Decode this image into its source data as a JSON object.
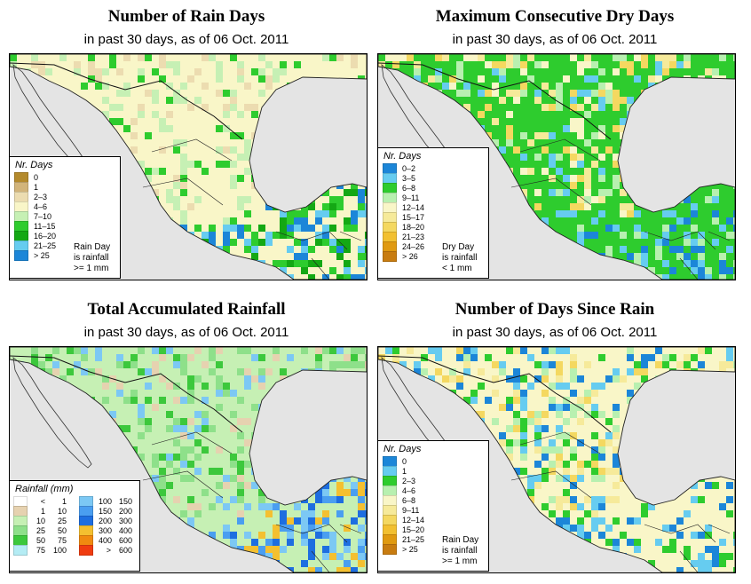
{
  "colors": {
    "land_light": "#f9f3c3",
    "land_pale": "#eef8cc",
    "green_light": "#b4eea8",
    "green": "#3cd43c",
    "green_dark": "#18b818",
    "blue_light": "#8fdcf4",
    "blue": "#44aaee",
    "blue_dark": "#1c76dc",
    "tan": "#deb887",
    "brown": "#c9881e",
    "orange": "#f5a623",
    "ocean": "#e4e4e4"
  },
  "panels": [
    {
      "title": "Number of Rain Days",
      "subtitle": "in past 30 days, as of  06 Oct. 2011",
      "legend": {
        "title": "Nr. Days",
        "items": [
          {
            "label": "0",
            "color": "#b48a2c"
          },
          {
            "label": "1",
            "color": "#d2b47a"
          },
          {
            "label": "2–3",
            "color": "#ecdcb0"
          },
          {
            "label": "4–6",
            "color": "#f9f6c8"
          },
          {
            "label": "7–10",
            "color": "#c6f0b4"
          },
          {
            "label": "11–15",
            "color": "#2ecc2e"
          },
          {
            "label": "16–20",
            "color": "#14a814"
          },
          {
            "label": "21–25",
            "color": "#66ccf0"
          },
          {
            "label": "> 25",
            "color": "#1c86d8"
          }
        ],
        "note": [
          "Rain Day",
          "is rainfall",
          ">= 1 mm"
        ]
      }
    },
    {
      "title": "Maximum Consecutive Dry Days",
      "subtitle": "in past 30 days, as of  06 Oct. 2011",
      "legend": {
        "title": "Nr. Days",
        "items": [
          {
            "label": "0–2",
            "color": "#1c86d8"
          },
          {
            "label": "3–5",
            "color": "#66ccf0"
          },
          {
            "label": "6–8",
            "color": "#2ecc2e"
          },
          {
            "label": "9–11",
            "color": "#b8f0b0"
          },
          {
            "label": "12–14",
            "color": "#f9f6c8"
          },
          {
            "label": "15–17",
            "color": "#f6ea9a"
          },
          {
            "label": "18–20",
            "color": "#f4d860"
          },
          {
            "label": "21–23",
            "color": "#f2c030"
          },
          {
            "label": "24–26",
            "color": "#e09a10"
          },
          {
            "label": "> 26",
            "color": "#c87c10"
          }
        ],
        "note": [
          "Dry Day",
          "is rainfall",
          "< 1 mm"
        ]
      }
    },
    {
      "title": "Total Accumulated Rainfall",
      "subtitle": "in past 30 days, as of  06 Oct. 2011",
      "legend": {
        "title": "Rainfall (mm)",
        "items": [
          {
            "lo": "<",
            "hi": "1",
            "color": "#ffffff"
          },
          {
            "lo": "1",
            "hi": "10",
            "color": "#e6d2b0"
          },
          {
            "lo": "10",
            "hi": "25",
            "color": "#c6f0b4"
          },
          {
            "lo": "25",
            "hi": "50",
            "color": "#8ee08a"
          },
          {
            "lo": "50",
            "hi": "75",
            "color": "#3cc83c"
          },
          {
            "lo": "75",
            "hi": "100",
            "color": "#b4ecf4"
          },
          {
            "lo": "100",
            "hi": "150",
            "color": "#7cc8f4"
          },
          {
            "lo": "150",
            "hi": "200",
            "color": "#4a9ef0"
          },
          {
            "lo": "200",
            "hi": "300",
            "color": "#1e6ee0"
          },
          {
            "lo": "300",
            "hi": "400",
            "color": "#f4c030"
          },
          {
            "lo": "400",
            "hi": "600",
            "color": "#f08a10"
          },
          {
            "lo": ">",
            "hi": "600",
            "color": "#f03c10"
          }
        ]
      }
    },
    {
      "title": "Number of Days Since Rain",
      "subtitle": "in past 30 days, as of  06 Oct. 2011",
      "legend": {
        "title": "Nr. Days",
        "items": [
          {
            "label": "0",
            "color": "#1c86d8"
          },
          {
            "label": "1",
            "color": "#66ccf0"
          },
          {
            "label": "2–3",
            "color": "#2ecc2e"
          },
          {
            "label": "4–6",
            "color": "#b8f0b0"
          },
          {
            "label": "6–8",
            "color": "#f9f6c8"
          },
          {
            "label": "9–11",
            "color": "#f6ea9a"
          },
          {
            "label": "12–14",
            "color": "#f4d860"
          },
          {
            "label": "15–20",
            "color": "#f2c030"
          },
          {
            "label": "21–25",
            "color": "#e09a10"
          },
          {
            "label": "> 25",
            "color": "#c87c10"
          }
        ],
        "note": [
          "Rain Day",
          "is rainfall",
          ">= 1 mm"
        ]
      }
    }
  ]
}
